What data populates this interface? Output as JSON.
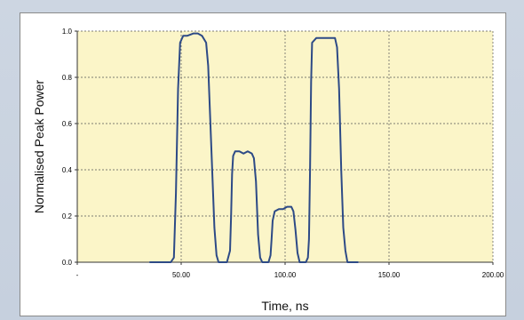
{
  "chart_data": {
    "type": "line",
    "xlabel": "Time, ns",
    "ylabel": "Normalised Peak Power",
    "xlim": [
      0,
      200
    ],
    "ylim": [
      0,
      1.0
    ],
    "x_ticks": [
      0,
      50,
      100,
      150,
      200
    ],
    "x_tick_labels": [
      "-",
      "50.00",
      "100.00",
      "150.00",
      "200.00"
    ],
    "y_ticks": [
      0,
      0.2,
      0.4,
      0.6,
      0.8,
      1.0
    ],
    "y_tick_labels": [
      "0.0",
      "0.2",
      "0.4",
      "0.6",
      "0.8",
      "1.0"
    ],
    "grid": true,
    "plot_background": "#fbf5c8",
    "line_color": "#2d4a86",
    "series": [
      {
        "x": [
          35,
          42,
          45,
          46.5,
          47.5,
          48.5,
          49.5,
          51,
          53,
          56,
          58,
          60,
          62,
          63,
          64.5,
          66,
          67,
          68,
          69,
          71,
          72,
          73.5,
          74,
          74.5,
          75,
          76,
          78,
          80,
          82,
          84,
          85,
          86,
          87,
          88,
          89,
          90,
          92,
          93,
          93.5,
          94,
          95,
          97,
          99,
          101,
          103,
          104,
          105,
          106,
          107,
          108,
          110,
          111,
          111.5,
          112,
          112.5,
          113,
          115,
          118,
          121,
          124,
          125,
          126,
          127,
          128,
          129,
          130,
          132,
          135
        ],
        "y": [
          0.0,
          0.0,
          0.0,
          0.02,
          0.3,
          0.75,
          0.95,
          0.98,
          0.98,
          0.99,
          0.99,
          0.98,
          0.95,
          0.85,
          0.5,
          0.15,
          0.03,
          0.0,
          0.0,
          0.0,
          0.0,
          0.05,
          0.2,
          0.38,
          0.46,
          0.48,
          0.48,
          0.47,
          0.48,
          0.47,
          0.45,
          0.35,
          0.12,
          0.02,
          0.0,
          0.0,
          0.0,
          0.03,
          0.1,
          0.18,
          0.22,
          0.23,
          0.23,
          0.24,
          0.24,
          0.22,
          0.14,
          0.04,
          0.0,
          0.0,
          0.0,
          0.02,
          0.1,
          0.4,
          0.78,
          0.95,
          0.97,
          0.97,
          0.97,
          0.97,
          0.93,
          0.75,
          0.4,
          0.15,
          0.05,
          0.0,
          0.0,
          0.0
        ]
      }
    ]
  }
}
